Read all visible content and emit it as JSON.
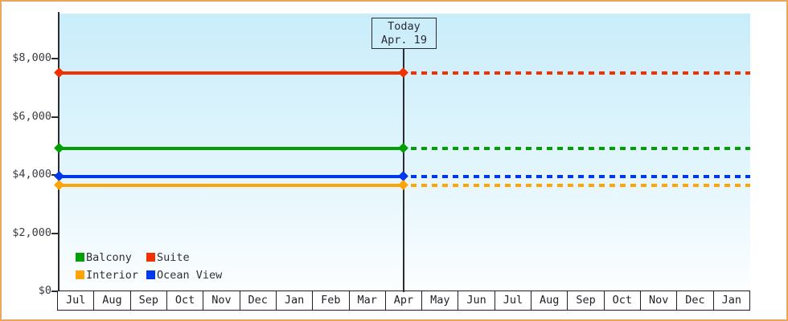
{
  "window": {
    "frame_border_color": "#E9A75B",
    "background_color": "#FFFFFF"
  },
  "chart_data": {
    "type": "line",
    "title": "",
    "xlabel": "",
    "ylabel": "",
    "x_axis": {
      "months": [
        "Jul",
        "Aug",
        "Sep",
        "Oct",
        "Nov",
        "Dec",
        "Jan",
        "Feb",
        "Mar",
        "Apr",
        "May",
        "Jun",
        "Jul",
        "Aug",
        "Sep",
        "Oct",
        "Nov",
        "Dec",
        "Jan"
      ]
    },
    "y_axis": {
      "ticks": [
        {
          "label": "$0",
          "value": 0
        },
        {
          "label": "$2,000",
          "value": 2000
        },
        {
          "label": "$4,000",
          "value": 4000
        },
        {
          "label": "$6,000",
          "value": 6000
        },
        {
          "label": "$8,000",
          "value": 8000
        }
      ],
      "range": [
        0,
        9500
      ],
      "grid": false
    },
    "today": {
      "label": "Today",
      "date": "Apr. 19",
      "style": "solid-before-dotted-after"
    },
    "series": [
      {
        "name": "Suite",
        "color": "#F33000",
        "value": 7500,
        "marker": "diamond"
      },
      {
        "name": "Balcony",
        "color": "#00A005",
        "value": 4900,
        "marker": "diamond"
      },
      {
        "name": "Ocean View",
        "color": "#0038EE",
        "value": 3950,
        "marker": "diamond"
      },
      {
        "name": "Interior",
        "color": "#FCA505",
        "value": 3650,
        "marker": "diamond"
      }
    ],
    "legend": {
      "position": "bottom-left",
      "items": [
        "Balcony",
        "Suite",
        "Interior",
        "Ocean View"
      ]
    },
    "plot_background": {
      "top": "#C9EDFA",
      "bottom": "#FCFEFF"
    }
  }
}
